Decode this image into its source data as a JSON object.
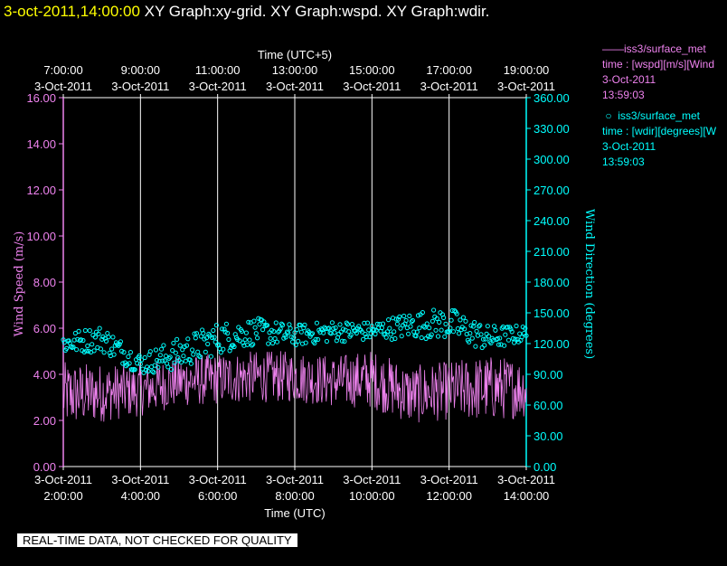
{
  "header": {
    "datetime": "3-oct-2011,14:00:00",
    "graph_titles": "XY Graph:xy-grid.  XY Graph:wspd.  XY Graph:wdir."
  },
  "legend": [
    {
      "line1": "iss3/surface_met",
      "line2": "time : [wspd][m/s][Wind",
      "line3": "3-Oct-2011",
      "line4": "13:59:03",
      "color": "#ee82ee",
      "marker": "line"
    },
    {
      "line1": "iss3/surface_met",
      "line2": "time : [wdir][degrees][W",
      "line3": "3-Oct-2011",
      "line4": "13:59:03",
      "color": "#00ffff",
      "marker": "circle"
    }
  ],
  "disclaimer": "REAL-TIME DATA, NOT CHECKED FOR QUALITY",
  "chart_data": {
    "type": "line",
    "top_axis": {
      "label": "Time (UTC+5)",
      "ticks": [
        {
          "time": "7:00:00",
          "date": "3-Oct-2011"
        },
        {
          "time": "9:00:00",
          "date": "3-Oct-2011"
        },
        {
          "time": "11:00:00",
          "date": "3-Oct-2011"
        },
        {
          "time": "13:00:00",
          "date": "3-Oct-2011"
        },
        {
          "time": "15:00:00",
          "date": "3-Oct-2011"
        },
        {
          "time": "17:00:00",
          "date": "3-Oct-2011"
        },
        {
          "time": "19:00:00",
          "date": "3-Oct-2011"
        }
      ]
    },
    "bottom_axis": {
      "label": "Time (UTC)",
      "range": [
        "3-Oct-2011 02:00:00",
        "3-Oct-2011 14:00:00"
      ],
      "ticks": [
        {
          "time": "2:00:00",
          "date": "3-Oct-2011"
        },
        {
          "time": "4:00:00",
          "date": "3-Oct-2011"
        },
        {
          "time": "6:00:00",
          "date": "3-Oct-2011"
        },
        {
          "time": "8:00:00",
          "date": "3-Oct-2011"
        },
        {
          "time": "10:00:00",
          "date": "3-Oct-2011"
        },
        {
          "time": "12:00:00",
          "date": "3-Oct-2011"
        },
        {
          "time": "14:00:00",
          "date": "3-Oct-2011"
        }
      ]
    },
    "left_axis": {
      "label": "Wind Speed (m/s)",
      "range": [
        0,
        16
      ],
      "ticks": [
        "0.00",
        "2.00",
        "4.00",
        "6.00",
        "8.00",
        "10.00",
        "12.00",
        "14.00",
        "16.00"
      ],
      "color": "#ee82ee"
    },
    "right_axis": {
      "label": "Wind Direction (degrees)",
      "range": [
        0,
        360
      ],
      "ticks": [
        "0.00",
        "30.00",
        "60.00",
        "90.00",
        "120.00",
        "150.00",
        "180.00",
        "210.00",
        "240.00",
        "270.00",
        "300.00",
        "330.00",
        "360.00"
      ],
      "color": "#00ffff"
    },
    "grid": {
      "vertical": true,
      "horizontal": false,
      "color": "#ffffff"
    },
    "series": [
      {
        "name": "iss3/surface_met time : [wspd][m/s][Wind",
        "style": "line",
        "color": "#ee82ee",
        "axis": "left",
        "hourly_trend": [
          {
            "hour": "2:00",
            "mean": 3.1,
            "spread": 0.9
          },
          {
            "hour": "3:00",
            "mean": 3.2,
            "spread": 0.8
          },
          {
            "hour": "4:00",
            "mean": 3.3,
            "spread": 0.7
          },
          {
            "hour": "5:00",
            "mean": 3.7,
            "spread": 0.7
          },
          {
            "hour": "6:00",
            "mean": 3.8,
            "spread": 0.7
          },
          {
            "hour": "7:00",
            "mean": 3.9,
            "spread": 0.7
          },
          {
            "hour": "8:00",
            "mean": 3.9,
            "spread": 0.7
          },
          {
            "hour": "9:00",
            "mean": 3.7,
            "spread": 0.7
          },
          {
            "hour": "10:00",
            "mean": 3.8,
            "spread": 0.8
          },
          {
            "hour": "11:00",
            "mean": 3.1,
            "spread": 0.8
          },
          {
            "hour": "12:00",
            "mean": 3.3,
            "spread": 0.8
          },
          {
            "hour": "13:00",
            "mean": 3.4,
            "spread": 0.9
          },
          {
            "hour": "14:00",
            "mean": 3.4,
            "spread": 0.8
          }
        ]
      },
      {
        "name": "iss3/surface_met time : [wdir][degrees][W",
        "style": "circle",
        "color": "#00ffff",
        "axis": "right",
        "hourly_trend": [
          {
            "hour": "2:00",
            "mean": 120,
            "spread": 8
          },
          {
            "hour": "3:00",
            "mean": 125,
            "spread": 10
          },
          {
            "hour": "4:00",
            "mean": 100,
            "spread": 8
          },
          {
            "hour": "5:00",
            "mean": 110,
            "spread": 12
          },
          {
            "hour": "6:00",
            "mean": 125,
            "spread": 12
          },
          {
            "hour": "7:00",
            "mean": 132,
            "spread": 10
          },
          {
            "hour": "8:00",
            "mean": 128,
            "spread": 8
          },
          {
            "hour": "9:00",
            "mean": 132,
            "spread": 8
          },
          {
            "hour": "10:00",
            "mean": 132,
            "spread": 7
          },
          {
            "hour": "11:00",
            "mean": 138,
            "spread": 10
          },
          {
            "hour": "12:00",
            "mean": 140,
            "spread": 12
          },
          {
            "hour": "13:00",
            "mean": 125,
            "spread": 10
          },
          {
            "hour": "14:00",
            "mean": 130,
            "spread": 6
          }
        ]
      }
    ]
  }
}
